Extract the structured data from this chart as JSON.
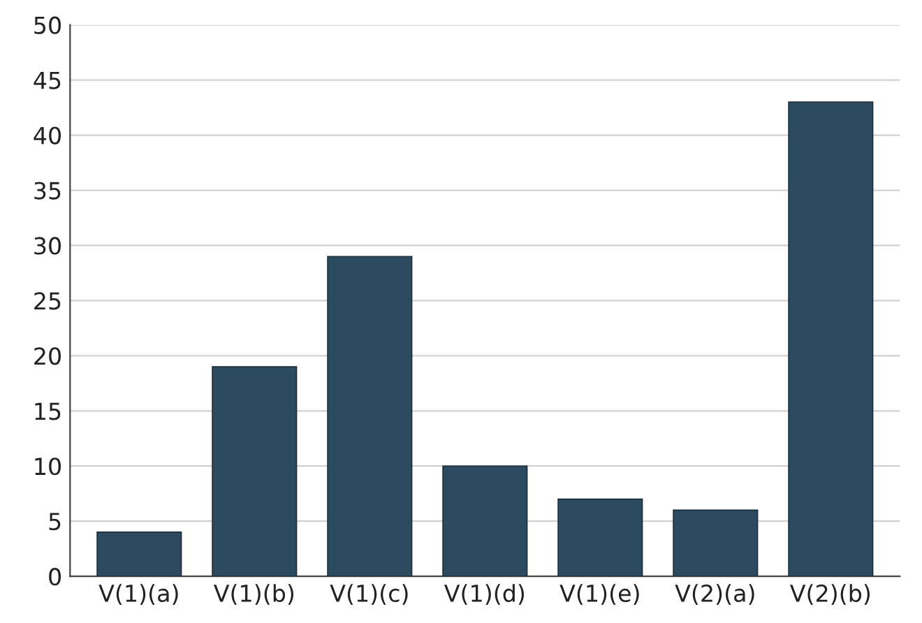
{
  "chart_data": {
    "type": "bar",
    "categories": [
      "V(1)(a)",
      "V(1)(b)",
      "V(1)(c)",
      "V(1)(d)",
      "V(1)(e)",
      "V(2)(a)",
      "V(2)(b)"
    ],
    "values": [
      4,
      19,
      29,
      10,
      7,
      6,
      43
    ],
    "color": "#2c4b60",
    "ylim": [
      0,
      50
    ],
    "yticks": [
      0,
      5,
      10,
      15,
      20,
      25,
      30,
      35,
      40,
      45,
      50
    ],
    "grid": "y"
  }
}
